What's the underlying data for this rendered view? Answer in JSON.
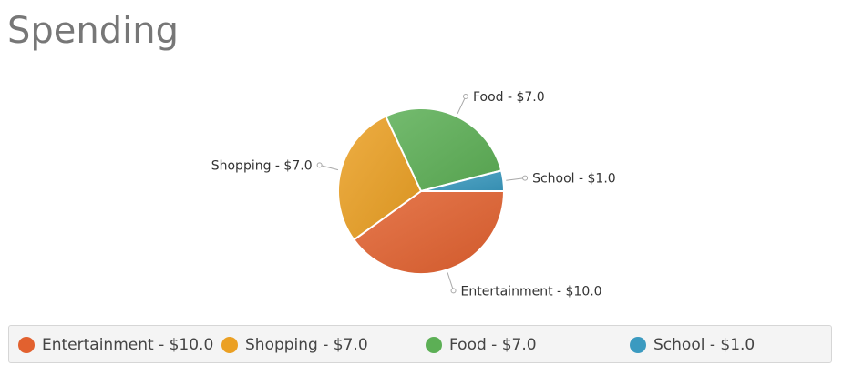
{
  "title": "Spending",
  "chart_data": {
    "type": "pie",
    "title": "Spending",
    "legend_position": "bottom",
    "slices": [
      {
        "label": "Entertainment - $10.0",
        "name": "Entertainment",
        "value": 10.0,
        "color": "#e2612f"
      },
      {
        "label": "Shopping - $7.0",
        "name": "Shopping",
        "value": 7.0,
        "color": "#eba023"
      },
      {
        "label": "Food - $7.0",
        "name": "Food",
        "value": 7.0,
        "color": "#5caf55"
      },
      {
        "label": "School - $1.0",
        "name": "School",
        "value": 1.0,
        "color": "#3b9ac0"
      }
    ]
  },
  "legend": {
    "items": [
      {
        "label": "Entertainment - $10.0",
        "color": "#e2612f"
      },
      {
        "label": "Shopping - $7.0",
        "color": "#eba023"
      },
      {
        "label": "Food - $7.0",
        "color": "#5caf55"
      },
      {
        "label": "School - $1.0",
        "color": "#3b9ac0"
      }
    ]
  }
}
